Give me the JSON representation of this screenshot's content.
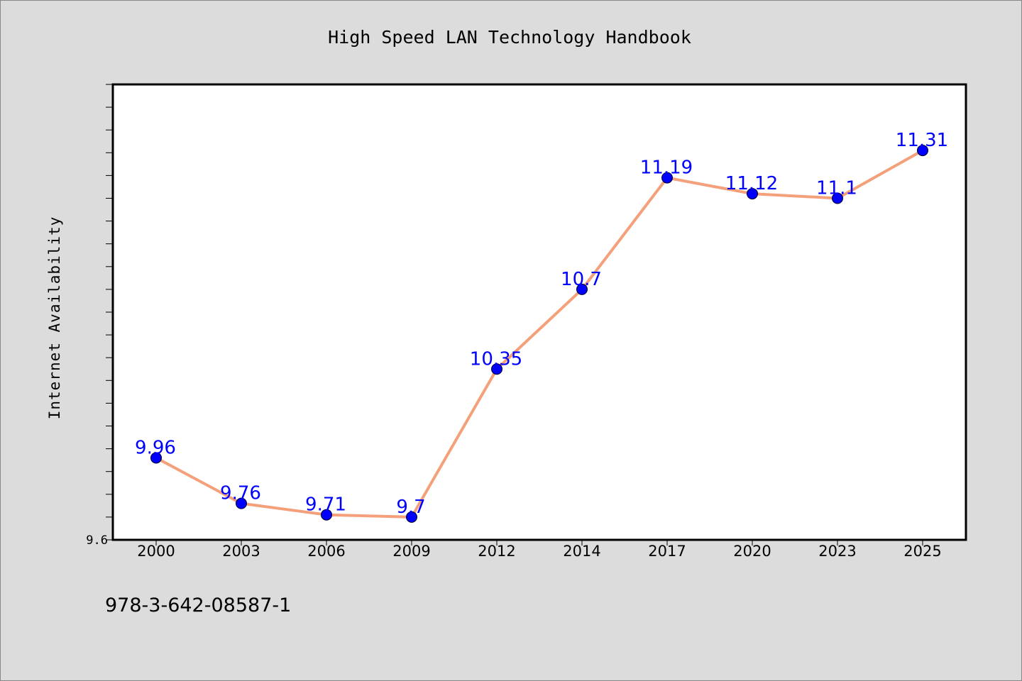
{
  "page": {
    "footer_text": "978-3-642-08587-1"
  },
  "colors": {
    "background": "#dcdcdc",
    "plot_background": "#ffffff",
    "line": "#f4a07a",
    "marker": "#0000ff",
    "label": "#0000ff"
  },
  "chart_data": {
    "type": "line",
    "title": "High Speed LAN Technology Handbook",
    "xlabel": "",
    "ylabel": "Internet Availability",
    "categories": [
      "2000",
      "2003",
      "2006",
      "2009",
      "2012",
      "2014",
      "2017",
      "2020",
      "2023",
      "2025"
    ],
    "series": [
      {
        "values": [
          9.96,
          9.76,
          9.71,
          9.7,
          10.35,
          10.7,
          11.19,
          11.12,
          11.1,
          11.31
        ]
      }
    ],
    "data_labels": [
      "9.96",
      "9.76",
      "9.71",
      "9.7",
      "10.35",
      "10.7",
      "11.19",
      "11.12",
      "11.1",
      "11.31"
    ],
    "ylim": [
      9.6,
      11.6
    ],
    "yticks_labeled": [
      "9.6"
    ],
    "grid": false,
    "legend": "none"
  }
}
